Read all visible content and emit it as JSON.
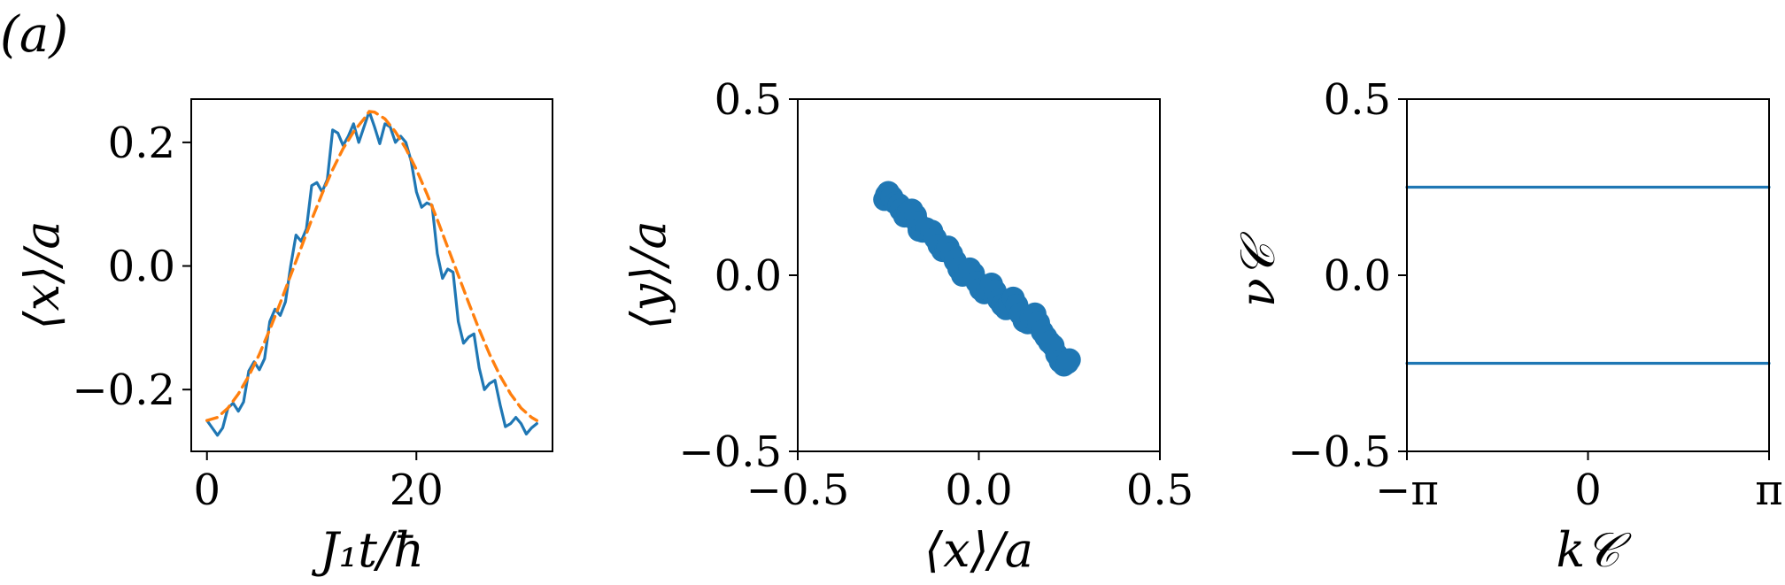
{
  "panel_label": "(a)",
  "colors": {
    "primary": "#1f77b4",
    "secondary": "#ff7f0e"
  },
  "chart_data": [
    {
      "type": "line",
      "xlabel": "J₁t/ħ",
      "ylabel": "⟨x⟩/a",
      "xlim": [
        -1.5,
        33
      ],
      "ylim": [
        -0.3,
        0.27
      ],
      "xticks": [
        0,
        20
      ],
      "xtick_labels": [
        "0",
        "20"
      ],
      "yticks": [
        -0.2,
        0.0,
        0.2
      ],
      "ytick_labels": [
        "−0.2",
        "0.0",
        "0.2"
      ],
      "grid": false,
      "series": [
        {
          "style": "solid",
          "color": "#1f77b4",
          "x": [
            0,
            0.5,
            1,
            1.5,
            2,
            2.5,
            3,
            3.5,
            4,
            4.5,
            5,
            5.5,
            6,
            6.5,
            7,
            7.5,
            8,
            8.5,
            9,
            9.5,
            10,
            10.5,
            11,
            11.5,
            12,
            12.5,
            13,
            13.5,
            14,
            14.5,
            15,
            15.5,
            16,
            16.5,
            17,
            17.5,
            18,
            18.5,
            19,
            19.5,
            20,
            20.5,
            21,
            21.5,
            22,
            22.5,
            23,
            23.5,
            24,
            24.5,
            25,
            25.5,
            26,
            26.5,
            27,
            27.5,
            28,
            28.5,
            29,
            29.5,
            30,
            30.5,
            31,
            31.5
          ],
          "y": [
            -0.25,
            -0.262,
            -0.274,
            -0.262,
            -0.23,
            -0.222,
            -0.235,
            -0.22,
            -0.17,
            -0.155,
            -0.168,
            -0.15,
            -0.09,
            -0.07,
            -0.08,
            -0.058,
            0.0,
            0.05,
            0.04,
            0.06,
            0.13,
            0.135,
            0.12,
            0.14,
            0.22,
            0.215,
            0.195,
            0.21,
            0.23,
            0.2,
            0.225,
            0.25,
            0.225,
            0.198,
            0.23,
            0.225,
            0.2,
            0.21,
            0.2,
            0.17,
            0.12,
            0.095,
            0.102,
            0.098,
            0.02,
            -0.02,
            -0.005,
            -0.01,
            -0.09,
            -0.125,
            -0.115,
            -0.11,
            -0.165,
            -0.2,
            -0.19,
            -0.185,
            -0.225,
            -0.26,
            -0.255,
            -0.245,
            -0.255,
            -0.272,
            -0.262,
            -0.255
          ]
        },
        {
          "style": "dashed",
          "color": "#ff7f0e",
          "x": [
            0,
            1,
            2,
            3,
            4,
            5,
            6,
            7,
            8,
            9,
            10,
            11,
            12,
            13,
            14,
            15,
            15.5,
            16,
            17,
            18,
            19,
            20,
            21,
            22,
            23,
            24,
            25,
            26,
            27,
            28,
            29,
            30,
            31,
            31.5
          ],
          "y": [
            -0.25,
            -0.245,
            -0.23,
            -0.207,
            -0.178,
            -0.143,
            -0.103,
            -0.06,
            -0.015,
            0.03,
            0.075,
            0.117,
            0.156,
            0.19,
            0.217,
            0.238,
            0.25,
            0.249,
            0.238,
            0.217,
            0.19,
            0.156,
            0.117,
            0.075,
            0.03,
            -0.015,
            -0.06,
            -0.103,
            -0.143,
            -0.178,
            -0.207,
            -0.23,
            -0.245,
            -0.25
          ]
        }
      ]
    },
    {
      "type": "scatter",
      "xlabel": "⟨x⟩/a",
      "ylabel": "⟨y⟩/a",
      "xlim": [
        -0.5,
        0.5
      ],
      "ylim": [
        -0.5,
        0.5
      ],
      "xticks": [
        -0.5,
        0.0,
        0.5
      ],
      "xtick_labels": [
        "−0.5",
        "0.0",
        "0.5"
      ],
      "yticks": [
        -0.5,
        0.0,
        0.5
      ],
      "ytick_labels": [
        "−0.5",
        "0.0",
        "0.5"
      ],
      "grid": false,
      "series": [
        {
          "color": "#1f77b4",
          "x": [
            -0.26,
            -0.255,
            -0.25,
            -0.24,
            -0.23,
            -0.22,
            -0.215,
            -0.205,
            -0.195,
            -0.185,
            -0.175,
            -0.17,
            -0.165,
            -0.155,
            -0.145,
            -0.13,
            -0.12,
            -0.11,
            -0.1,
            -0.09,
            -0.085,
            -0.075,
            -0.065,
            -0.055,
            -0.045,
            -0.035,
            -0.025,
            -0.015,
            -0.005,
            0.005,
            0.015,
            0.025,
            0.035,
            0.045,
            0.055,
            0.065,
            0.075,
            0.085,
            0.095,
            0.105,
            0.115,
            0.125,
            0.135,
            0.145,
            0.155,
            0.165,
            0.175,
            0.185,
            0.195,
            0.205,
            0.215,
            0.225,
            0.235,
            0.245,
            0.25
          ],
          "y": [
            0.215,
            0.228,
            0.235,
            0.222,
            0.205,
            0.2,
            0.185,
            0.168,
            0.178,
            0.185,
            0.17,
            0.15,
            0.128,
            0.125,
            0.132,
            0.125,
            0.105,
            0.085,
            0.07,
            0.075,
            0.08,
            0.06,
            0.04,
            0.018,
            0.0,
            0.005,
            0.018,
            0.005,
            -0.02,
            -0.04,
            -0.05,
            -0.04,
            -0.025,
            -0.045,
            -0.07,
            -0.085,
            -0.095,
            -0.08,
            -0.065,
            -0.085,
            -0.11,
            -0.13,
            -0.135,
            -0.12,
            -0.11,
            -0.135,
            -0.16,
            -0.175,
            -0.19,
            -0.2,
            -0.225,
            -0.245,
            -0.255,
            -0.248,
            -0.24
          ]
        }
      ]
    },
    {
      "type": "line",
      "xlabel": "k𝒞",
      "ylabel": "ν𝒞",
      "xlim": [
        -3.14159,
        3.14159
      ],
      "ylim": [
        -0.5,
        0.5
      ],
      "xticks": [
        -3.14159,
        0,
        3.14159
      ],
      "xtick_labels": [
        "−π",
        "0",
        "π"
      ],
      "yticks": [
        -0.5,
        0.0,
        0.5
      ],
      "ytick_labels": [
        "−0.5",
        "0.0",
        "0.5"
      ],
      "grid": false,
      "series": [
        {
          "color": "#1f77b4",
          "x": [
            -3.14159,
            3.14159
          ],
          "y": [
            0.25,
            0.25
          ]
        },
        {
          "color": "#1f77b4",
          "x": [
            -3.14159,
            3.14159
          ],
          "y": [
            -0.25,
            -0.25
          ]
        }
      ]
    }
  ]
}
